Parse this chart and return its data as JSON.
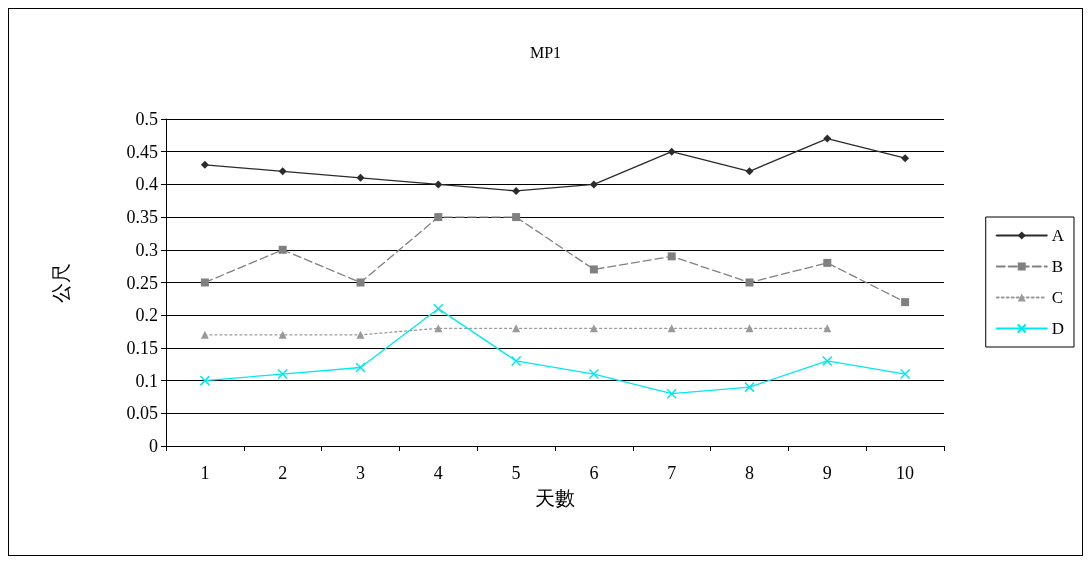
{
  "chart_data": {
    "type": "line",
    "title": "MP1",
    "xlabel": "天數",
    "ylabel": "公尺",
    "categories": [
      "1",
      "2",
      "3",
      "4",
      "5",
      "6",
      "7",
      "8",
      "9",
      "10"
    ],
    "series": [
      {
        "name": "A",
        "color": "#2b2b2b",
        "marker": "diamond",
        "line_style": "solid",
        "values": [
          0.43,
          0.42,
          0.41,
          0.4,
          0.39,
          0.4,
          0.45,
          0.42,
          0.47,
          0.44
        ]
      },
      {
        "name": "B",
        "color": "#808080",
        "marker": "square",
        "line_style": "dashed",
        "values": [
          0.25,
          0.3,
          0.25,
          0.35,
          0.35,
          0.27,
          0.29,
          0.25,
          0.28,
          0.22
        ]
      },
      {
        "name": "C",
        "color": "#999999",
        "marker": "triangle",
        "line_style": "dotted",
        "values": [
          0.17,
          0.17,
          0.17,
          0.18,
          0.18,
          0.18,
          0.18,
          0.18,
          0.18,
          null
        ]
      },
      {
        "name": "D",
        "color": "#00e8f0",
        "marker": "cross",
        "line_style": "solid",
        "values": [
          0.1,
          0.11,
          0.12,
          0.21,
          0.13,
          0.11,
          0.08,
          0.09,
          0.13,
          0.11
        ]
      }
    ],
    "ylim": [
      0,
      0.5
    ],
    "yticks": [
      0,
      0.05,
      0.1,
      0.15,
      0.2,
      0.25,
      0.3,
      0.35,
      0.4,
      0.45,
      0.5
    ],
    "grid": "y",
    "legend": "right"
  }
}
